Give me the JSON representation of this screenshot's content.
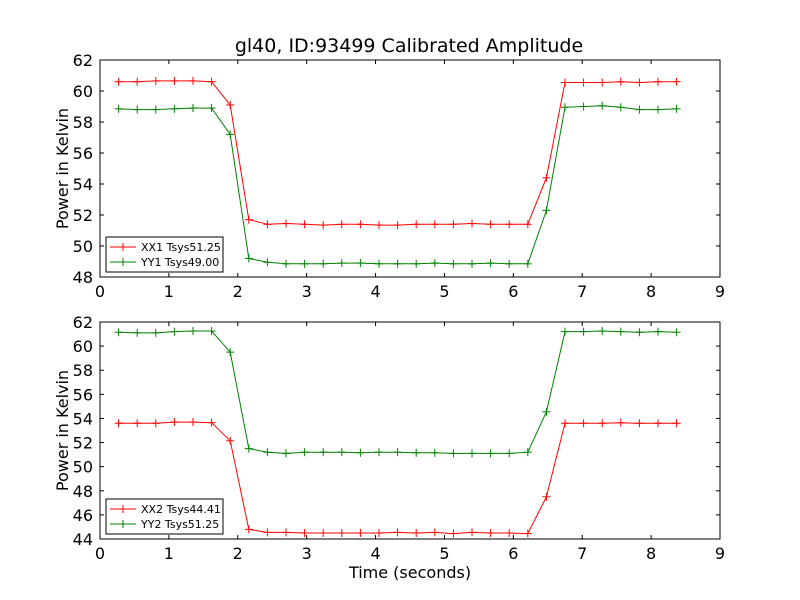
{
  "figure": {
    "title": "gl40, ID:93499 Calibrated Amplitude"
  },
  "colors": {
    "xx": "#ff0000",
    "yy": "#008000",
    "axes": "#000000",
    "background": "#ffffff"
  },
  "chart_data": [
    {
      "type": "line",
      "title": "gl40, ID:93499 Calibrated Amplitude",
      "xlabel": "",
      "ylabel": "Power in Kelvin",
      "xlim": [
        0,
        9
      ],
      "ylim": [
        48,
        62
      ],
      "xticks": [
        "0",
        "1",
        "2",
        "3",
        "4",
        "5",
        "6",
        "7",
        "8",
        "9"
      ],
      "yticks": [
        "48",
        "50",
        "52",
        "54",
        "56",
        "58",
        "60",
        "62"
      ],
      "grid": false,
      "legend_position": "lower-left",
      "x": [
        0.27,
        0.54,
        0.81,
        1.08,
        1.35,
        1.62,
        1.89,
        2.16,
        2.43,
        2.7,
        2.97,
        3.24,
        3.51,
        3.78,
        4.05,
        4.32,
        4.59,
        4.86,
        5.13,
        5.4,
        5.67,
        5.94,
        6.21,
        6.48,
        6.75,
        7.02,
        7.29,
        7.56,
        7.83,
        8.1,
        8.37
      ],
      "series": [
        {
          "name": "XX1 Tsys51.25",
          "color": "#ff0000",
          "values": [
            60.6,
            60.6,
            60.65,
            60.65,
            60.65,
            60.6,
            59.1,
            51.7,
            51.4,
            51.45,
            51.4,
            51.35,
            51.4,
            51.4,
            51.35,
            51.35,
            51.4,
            51.4,
            51.4,
            51.45,
            51.4,
            51.4,
            51.4,
            54.4,
            60.55,
            60.55,
            60.55,
            60.6,
            60.55,
            60.6,
            60.6
          ]
        },
        {
          "name": "YY1 Tsys49.00",
          "color": "#008000",
          "values": [
            58.85,
            58.8,
            58.8,
            58.85,
            58.9,
            58.9,
            57.2,
            49.2,
            48.95,
            48.85,
            48.85,
            48.85,
            48.9,
            48.9,
            48.85,
            48.85,
            48.85,
            48.9,
            48.85,
            48.85,
            48.9,
            48.85,
            48.85,
            52.3,
            58.95,
            59.0,
            59.05,
            58.95,
            58.8,
            58.8,
            58.85
          ]
        }
      ]
    },
    {
      "type": "line",
      "title": "",
      "xlabel": "Time (seconds)",
      "ylabel": "Power in Kelvin",
      "xlim": [
        0,
        9
      ],
      "ylim": [
        44,
        62
      ],
      "xticks": [
        "0",
        "1",
        "2",
        "3",
        "4",
        "5",
        "6",
        "7",
        "8",
        "9"
      ],
      "yticks": [
        "44",
        "46",
        "48",
        "50",
        "52",
        "54",
        "56",
        "58",
        "60",
        "62"
      ],
      "grid": false,
      "legend_position": "lower-left",
      "x": [
        0.27,
        0.54,
        0.81,
        1.08,
        1.35,
        1.62,
        1.89,
        2.16,
        2.43,
        2.7,
        2.97,
        3.24,
        3.51,
        3.78,
        4.05,
        4.32,
        4.59,
        4.86,
        5.13,
        5.4,
        5.67,
        5.94,
        6.21,
        6.48,
        6.75,
        7.02,
        7.29,
        7.56,
        7.83,
        8.1,
        8.37
      ],
      "series": [
        {
          "name": "XX2 Tsys44.41",
          "color": "#ff0000",
          "values": [
            53.6,
            53.6,
            53.6,
            53.7,
            53.7,
            53.65,
            52.15,
            44.8,
            44.55,
            44.55,
            44.5,
            44.5,
            44.5,
            44.5,
            44.5,
            44.55,
            44.5,
            44.55,
            44.45,
            44.55,
            44.5,
            44.5,
            44.45,
            47.5,
            53.6,
            53.6,
            53.6,
            53.65,
            53.6,
            53.6,
            53.6
          ]
        },
        {
          "name": "YY2 Tsys51.25",
          "color": "#008000",
          "values": [
            61.15,
            61.1,
            61.1,
            61.2,
            61.25,
            61.25,
            59.5,
            51.5,
            51.2,
            51.1,
            51.2,
            51.2,
            51.2,
            51.15,
            51.2,
            51.2,
            51.15,
            51.15,
            51.1,
            51.1,
            51.1,
            51.1,
            51.2,
            54.55,
            61.2,
            61.2,
            61.25,
            61.2,
            61.15,
            61.2,
            61.15
          ]
        }
      ]
    }
  ]
}
